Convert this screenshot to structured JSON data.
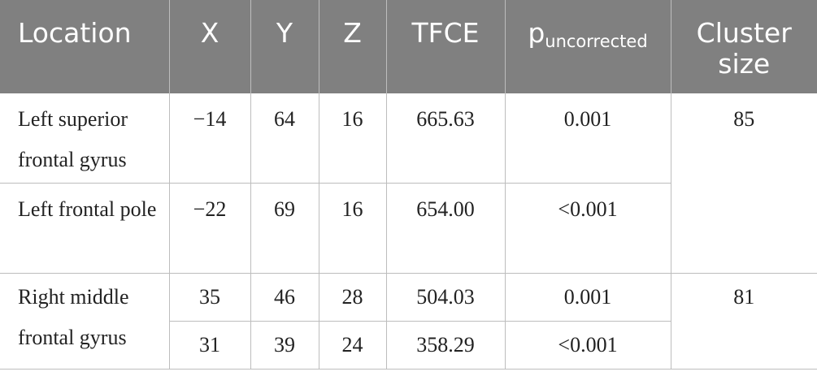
{
  "table": {
    "header": [
      "Location",
      "X",
      "Y",
      "Z",
      "TFCE",
      {
        "text": "p",
        "subscript": "uncorrected"
      },
      "Cluster size"
    ],
    "rows": [
      [
        "Left superior frontal gyrus",
        "−14",
        "64",
        "16",
        "665.63",
        "0.001",
        "85"
      ],
      [
        "Left frontal pole",
        "−22",
        "69",
        "16",
        "654.00",
        "<0.001"
      ],
      [
        "Right middle frontal gyrus",
        "35",
        "46",
        "28",
        "504.03",
        "0.001",
        "81"
      ],
      [
        "31",
        "39",
        "24",
        "358.29",
        "<0.001"
      ]
    ]
  }
}
